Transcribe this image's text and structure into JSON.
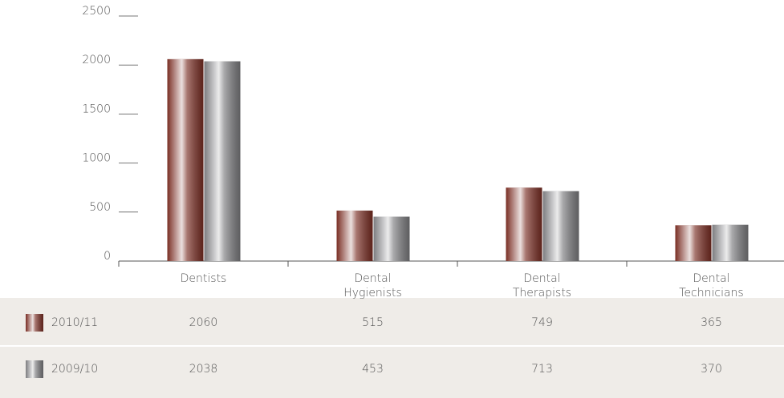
{
  "chart_data": {
    "type": "bar",
    "categories": [
      "Dentists",
      "Dental Hygienists",
      "Dental Therapists",
      "Dental Technicians"
    ],
    "series": [
      {
        "name": "2010/11",
        "color": "#7a2e24",
        "values": [
          2060,
          515,
          749,
          365
        ]
      },
      {
        "name": "2009/10",
        "color": "#7d7d80",
        "values": [
          2038,
          453,
          713,
          370
        ]
      }
    ],
    "ylim": [
      0,
      2500
    ],
    "yticks": [
      0,
      500,
      1000,
      1500,
      2000,
      2500
    ]
  }
}
